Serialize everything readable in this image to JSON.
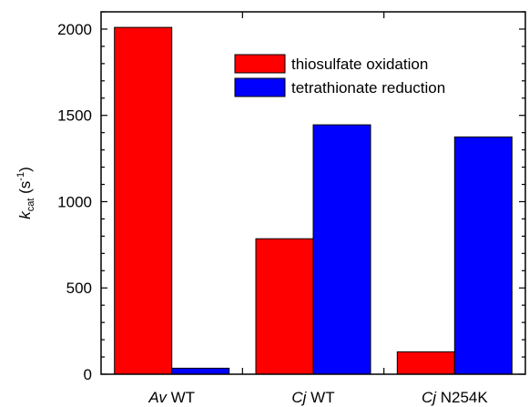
{
  "chart_data": {
    "type": "bar",
    "categories": [
      {
        "italic": "Av",
        "rest": " WT"
      },
      {
        "italic": "Cj",
        "rest": " WT"
      },
      {
        "italic": "Cj",
        "rest": " N254K"
      }
    ],
    "series": [
      {
        "name": "thiosulfate oxidation",
        "color": "#ff0000",
        "values": [
          2010,
          785,
          130
        ]
      },
      {
        "name": "tetrathionate reduction",
        "color": "#0000ff",
        "values": [
          35,
          1445,
          1375
        ]
      }
    ],
    "ylabel": {
      "k": "k",
      "sub": "cat",
      "unit_open": " (s",
      "sup": "-1",
      "unit_close": ")"
    },
    "ylim": [
      0,
      2100
    ],
    "yticks": [
      0,
      500,
      1000,
      1500,
      2000
    ],
    "yminor_step": 100,
    "legend_position": "top-right",
    "grid": false
  }
}
